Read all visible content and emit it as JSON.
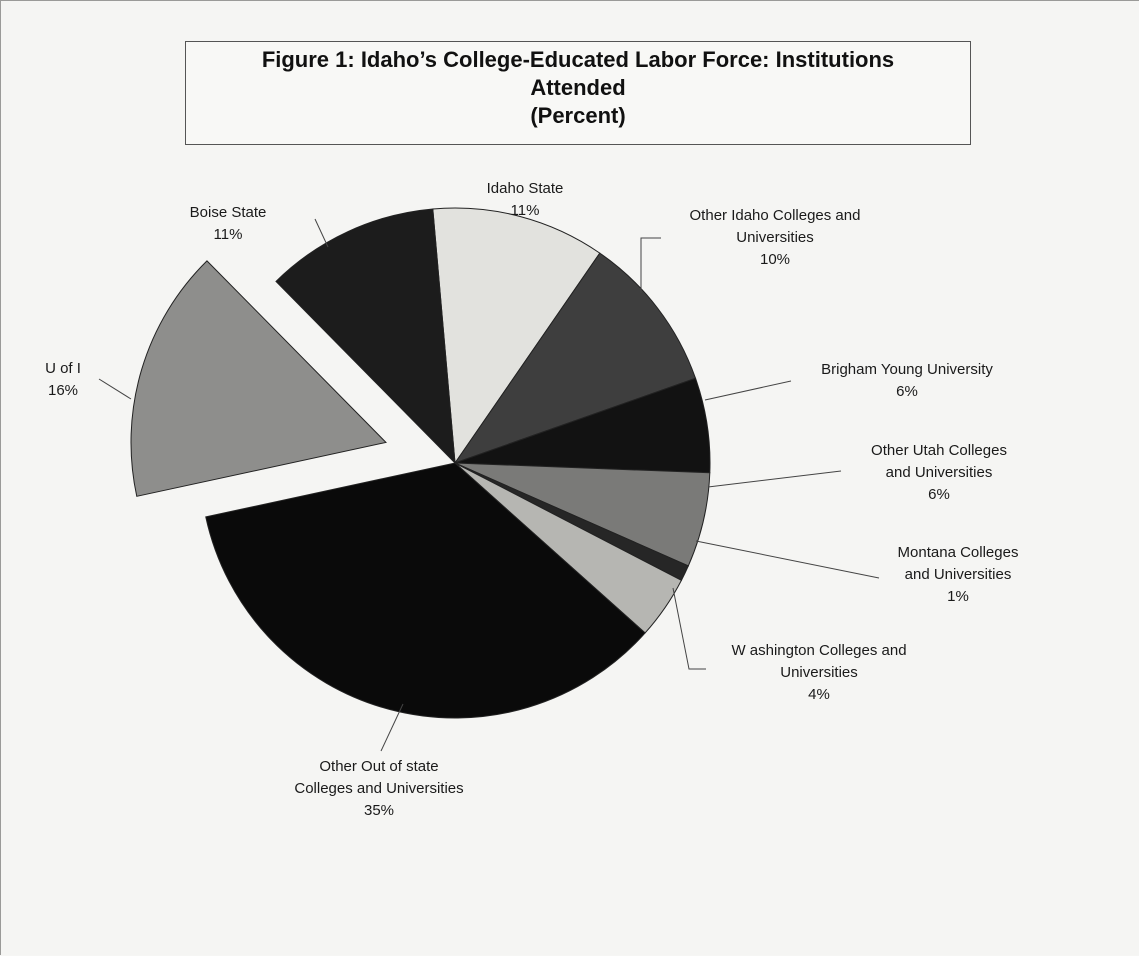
{
  "chart_data": {
    "type": "pie",
    "title_lines": [
      "Figure 1:  Idaho’s College-Educated Labor Force: Institutions",
      "Attended",
      "(Percent)"
    ],
    "slices": [
      {
        "name": "Idaho State",
        "label_lines": [
          "Idaho State",
          "11%"
        ],
        "value": 11,
        "color": "#e2e2de",
        "exploded": false
      },
      {
        "name": "Other Idaho Colleges and Universities",
        "label_lines": [
          "Other Idaho Colleges and",
          "Universities",
          "10%"
        ],
        "value": 10,
        "color": "#3e3e3e",
        "exploded": false
      },
      {
        "name": "Brigham Young University",
        "label_lines": [
          "Brigham Young University",
          "6%"
        ],
        "value": 6,
        "color": "#121212",
        "exploded": false
      },
      {
        "name": "Other Utah Colleges and Universities",
        "label_lines": [
          "Other Utah Colleges",
          "and Universities",
          "6%"
        ],
        "value": 6,
        "color": "#7a7a78",
        "exploded": false
      },
      {
        "name": "Montana Colleges and Universities",
        "label_lines": [
          "Montana Colleges",
          "and Universities",
          "1%"
        ],
        "value": 1,
        "color": "#262626",
        "exploded": false
      },
      {
        "name": "Washington Colleges and Universities",
        "label_lines": [
          "W ashington Colleges and",
          "Universities",
          "4%"
        ],
        "value": 4,
        "color": "#b6b6b2",
        "exploded": false
      },
      {
        "name": "Other Out of state Colleges and Universities",
        "label_lines": [
          "Other Out of state",
          "Colleges and Universities",
          "35%"
        ],
        "value": 35,
        "color": "#0a0a0a",
        "exploded": false
      },
      {
        "name": "U of I",
        "label_lines": [
          "U of I",
          "16%"
        ],
        "value": 16,
        "color": "#8e8e8c",
        "exploded": true
      },
      {
        "name": "Boise State",
        "label_lines": [
          "Boise State",
          "11%"
        ],
        "value": 11,
        "color": "#1c1c1c",
        "exploded": false
      }
    ]
  }
}
